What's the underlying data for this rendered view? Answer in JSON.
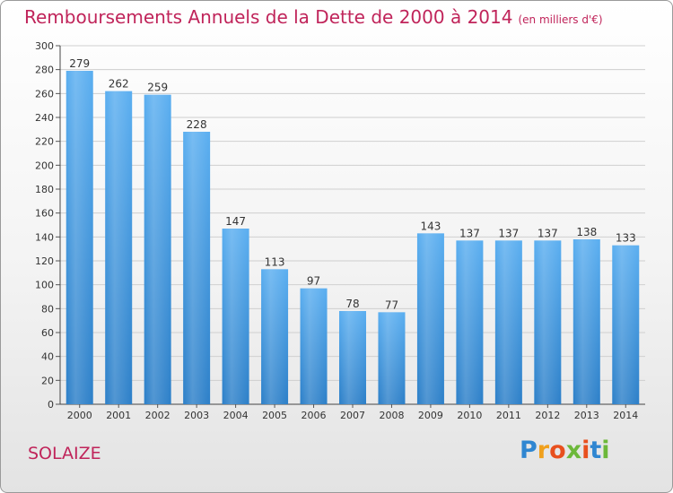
{
  "title": {
    "main": "Remboursements Annuels de la Dette de 2000 à 2014",
    "unit": "(en milliers d'€)"
  },
  "footer": {
    "city": "SOLAIZE",
    "logo_letters": [
      {
        "ch": "P",
        "color": "#2f86d1"
      },
      {
        "ch": "r",
        "color": "#f0a01c"
      },
      {
        "ch": "o",
        "color": "#e8501e"
      },
      {
        "ch": "x",
        "color": "#6cb83a"
      },
      {
        "ch": "i",
        "color": "#e8501e"
      },
      {
        "ch": "t",
        "color": "#2f86d1"
      },
      {
        "ch": "i",
        "color": "#6cb83a"
      }
    ]
  },
  "chart_data": {
    "type": "bar",
    "categories": [
      "2000",
      "2001",
      "2002",
      "2003",
      "2004",
      "2005",
      "2006",
      "2007",
      "2008",
      "2009",
      "2010",
      "2011",
      "2012",
      "2013",
      "2014"
    ],
    "values": [
      279,
      262,
      259,
      228,
      147,
      113,
      97,
      78,
      77,
      143,
      137,
      137,
      137,
      138,
      133
    ],
    "ylim": [
      0,
      300
    ],
    "ytick_step": 20,
    "grid": true,
    "data_labels": true,
    "bar_color": "#4a9de0"
  }
}
